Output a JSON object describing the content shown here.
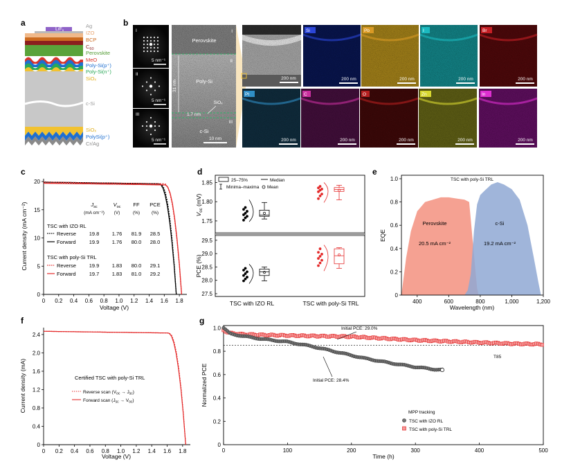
{
  "panel_labels": [
    "a",
    "b",
    "c",
    "d",
    "e",
    "f",
    "g"
  ],
  "panel_a": {
    "layers": [
      {
        "name": "LiF",
        "sub": "x",
        "color": "#8f63c8"
      },
      {
        "name": "Ag",
        "color": "#9a9a9a"
      },
      {
        "name": "IZO",
        "color": "#f0b98a"
      },
      {
        "name": "BCP",
        "color": "#cc6b1f"
      },
      {
        "name": "C",
        "sub": "60",
        "color": "#8b1e1e"
      },
      {
        "name": "Perovskite",
        "color": "#5aa33a"
      },
      {
        "name": "MeO",
        "color": "#d9342b"
      },
      {
        "name": "Poly-Si(p⁺)",
        "color": "#1f6fd0"
      },
      {
        "name": "Poly-Si(n⁺)",
        "color": "#2aa858"
      },
      {
        "name": "SiOₓ",
        "color": "#f2c230"
      },
      {
        "name": "c-Si",
        "color": "#9a9a9a"
      },
      {
        "name": "SiOₓ",
        "color": "#f2c230"
      },
      {
        "name": "PolySi(p⁺)",
        "color": "#1f6fd0"
      },
      {
        "name": "Cr/Ag",
        "color": "#8a8a8a"
      }
    ]
  },
  "panel_b": {
    "fft_labels": [
      "I",
      "II",
      "III"
    ],
    "fft_scale": "5 nm⁻¹",
    "tem_labels": {
      "perovskite": "Perovskite",
      "polysi": "Poly-Si",
      "sio": "SiOₓ",
      "csi": "c-Si",
      "thick": "31 nm",
      "thin": "1.7 nm",
      "scale": "10 nm",
      "r1": "I",
      "r2": "II",
      "r3": "III"
    },
    "eds_row1": [
      {
        "el": "Si",
        "bg": "#08144a",
        "fg": "#2c46d8"
      },
      {
        "el": "Pb",
        "bg": "#9a7a18",
        "fg": "#d99a25"
      },
      {
        "el": "I",
        "bg": "#127d80",
        "fg": "#1bbac0"
      },
      {
        "el": "Br",
        "bg": "#4a080a",
        "fg": "#c61f25"
      }
    ],
    "eds_row2": [
      {
        "el": "Pt",
        "bg": "#0f2a3a",
        "fg": "#2f8ec5"
      },
      {
        "el": "C",
        "bg": "#3f0e38",
        "fg": "#c82f9e"
      },
      {
        "el": "O",
        "bg": "#3a0808",
        "fg": "#b52020"
      },
      {
        "el": "Zn",
        "bg": "#5a5a14",
        "fg": "#d7d730"
      },
      {
        "el": "In",
        "bg": "#5a0e5a",
        "fg": "#de2fd0"
      }
    ],
    "eds_scale": "200 nm"
  },
  "panel_c": {
    "xlabel": "Voltage (V)",
    "ylabel": "Current density (mA cm⁻²)",
    "xticks": [
      "0",
      "0.2",
      "0.4",
      "0.6",
      "0.8",
      "1.0",
      "1.2",
      "1.4",
      "1.6",
      "1.8"
    ],
    "yticks": [
      "0",
      "5",
      "10",
      "15",
      "20"
    ],
    "table_head": {
      "jsc": "J",
      "jsc_sub": "sc",
      "voc": "V",
      "voc_sub": "oc",
      "ff": "FF",
      "pce": "PCE",
      "u_jsc": "(mA cm⁻²)",
      "u_voc": "(V)",
      "u_ff": "(%)",
      "u_pce": "(%)"
    },
    "group1": "TSC with IZO RL",
    "group2": "TSC with poly-Si TRL",
    "rows": [
      {
        "label": "Reverse",
        "jsc": "19.8",
        "voc": "1.76",
        "ff": "81.9",
        "pce": "28.5"
      },
      {
        "label": "Forward",
        "jsc": "19.9",
        "voc": "1.76",
        "ff": "80.0",
        "pce": "28.0"
      },
      {
        "label": "Reverse",
        "jsc": "19.9",
        "voc": "1.83",
        "ff": "80.0",
        "pce": "29.1"
      },
      {
        "label": "Forward",
        "jsc": "19.7",
        "voc": "1.83",
        "ff": "81.0",
        "pce": "29.2"
      }
    ]
  },
  "panel_d": {
    "legend": {
      "box": "25–75%",
      "median": "Median",
      "range": "Minima–maxima",
      "mean": "Mean"
    },
    "xcats": [
      "TSC with IZO RL",
      "TSC with poly-Si TRL"
    ],
    "top_ylabel": "V",
    "top_ylabel_sub": "oc",
    "top_ylabel_unit": " (mV)",
    "top_yticks": [
      "1.75",
      "1.80",
      "1.85"
    ],
    "bottom_ylabel": "PCE (%)",
    "bottom_yticks": [
      "27.5",
      "28.0",
      "28.5",
      "29.0",
      "29.5"
    ]
  },
  "panel_e": {
    "title": "TSC with poly-Si TRL",
    "xlabel": "Wavelength (nm)",
    "ylabel": "EQE",
    "xticks": [
      "400",
      "600",
      "800",
      "1,000",
      "1,200"
    ],
    "yticks": [
      "0",
      "0.2",
      "0.4",
      "0.6",
      "0.8",
      "1.0"
    ],
    "pero": "Perovskite",
    "pero_j": "20.5 mA cm⁻²",
    "csi": "c-Si",
    "csi_j": "19.2 mA cm⁻²"
  },
  "panel_f": {
    "xlabel": "Voltage (V)",
    "ylabel": "Current density (mA)",
    "xticks": [
      "0",
      "0.2",
      "0.4",
      "0.6",
      "0.8",
      "1.0",
      "1.2",
      "1.4",
      "1.6",
      "1.8"
    ],
    "yticks": [
      "0",
      "0.4",
      "0.8",
      "1.2",
      "1.6",
      "2.0",
      "2.4"
    ],
    "caption": "Certified TSC with poly-Si TRL",
    "rev": "Reverse scan (V",
    "rev_a": "oc",
    "rev_b": " → J",
    "rev_c": "sc",
    "rev_d": ")",
    "fwd": "Forward scan (J",
    "fwd_a": "sc",
    "fwd_b": " → V",
    "fwd_c": "oc",
    "fwd_d": ")"
  },
  "panel_g": {
    "xlabel": "Time (h)",
    "ylabel": "Normalized PCE",
    "xticks": [
      "0",
      "100",
      "200",
      "300",
      "400",
      "500"
    ],
    "yticks": [
      "0",
      "0.2",
      "0.4",
      "0.6",
      "0.8",
      "1.0"
    ],
    "t85": "T85",
    "init_red": "Initial PCE: 29.0%",
    "init_black": "Initial PCE: 28.4%",
    "legend_title": "MPP tracking",
    "legend_a": "TSC with IZO RL",
    "legend_b": "TSC with poly-Si TRL"
  },
  "chart_data": [
    {
      "panel": "c",
      "type": "line",
      "xlabel": "Voltage (V)",
      "ylabel": "Current density (mA cm⁻²)",
      "xlim": [
        0,
        1.9
      ],
      "ylim": [
        0,
        20.5
      ],
      "series": [
        {
          "name": "IZO RL Reverse",
          "color": "#000000",
          "dash": true,
          "jsc": 19.8,
          "voc": 1.76,
          "knee": 1.55
        },
        {
          "name": "IZO RL Forward",
          "color": "#000000",
          "dash": false,
          "jsc": 19.9,
          "voc": 1.76,
          "knee": 1.53
        },
        {
          "name": "poly-Si TRL Reverse",
          "color": "#e42a2a",
          "dash": true,
          "jsc": 19.9,
          "voc": 1.83,
          "knee": 1.6
        },
        {
          "name": "poly-Si TRL Forward",
          "color": "#e42a2a",
          "dash": false,
          "jsc": 19.7,
          "voc": 1.83,
          "knee": 1.61
        }
      ]
    },
    {
      "panel": "d-top",
      "type": "box",
      "ylim": [
        1.73,
        1.86
      ],
      "categories": [
        "TSC with IZO RL",
        "TSC with poly-Si TRL"
      ],
      "boxes": [
        {
          "min": 1.755,
          "q1": 1.762,
          "median": 1.765,
          "q3": 1.778,
          "max": 1.798,
          "mean": 1.77,
          "color": "#000000",
          "points": [
            1.752,
            1.758,
            1.762,
            1.766,
            1.77,
            1.775,
            1.78,
            1.785
          ]
        },
        {
          "min": 1.805,
          "q1": 1.827,
          "median": 1.832,
          "q3": 1.837,
          "max": 1.843,
          "mean": 1.83,
          "color": "#e42a2a",
          "points": [
            1.808,
            1.815,
            1.82,
            1.826,
            1.83,
            1.833,
            1.836,
            1.84
          ]
        }
      ]
    },
    {
      "panel": "d-bottom",
      "type": "box",
      "ylim": [
        27.5,
        29.6
      ],
      "categories": [
        "TSC with IZO RL",
        "TSC with poly-Si TRL"
      ],
      "boxes": [
        {
          "min": 27.98,
          "q1": 28.18,
          "median": 28.32,
          "q3": 28.42,
          "max": 28.5,
          "mean": 28.3,
          "color": "#000000",
          "points": [
            27.98,
            28.05,
            28.12,
            28.18,
            28.25,
            28.32,
            28.38,
            28.45
          ]
        },
        {
          "min": 28.45,
          "q1": 28.62,
          "median": 28.92,
          "q3": 29.18,
          "max": 29.22,
          "mean": 28.95,
          "color": "#e42a2a",
          "points": [
            28.55,
            28.65,
            28.75,
            28.82,
            28.9,
            28.98,
            29.05,
            29.18
          ]
        }
      ]
    },
    {
      "panel": "e",
      "type": "area",
      "xlabel": "Wavelength (nm)",
      "ylabel": "EQE",
      "xlim": [
        300,
        1200
      ],
      "ylim": [
        0,
        1.0
      ],
      "series": [
        {
          "name": "Perovskite",
          "color": "#f3917f",
          "x": [
            300,
            330,
            360,
            400,
            450,
            500,
            550,
            600,
            650,
            700,
            730,
            760,
            780,
            790
          ],
          "y": [
            0.0,
            0.32,
            0.55,
            0.72,
            0.8,
            0.82,
            0.84,
            0.84,
            0.83,
            0.82,
            0.8,
            0.35,
            0.06,
            0.0
          ]
        },
        {
          "name": "c-Si",
          "color": "#8fa8d3",
          "x": [
            700,
            720,
            740,
            760,
            780,
            800,
            830,
            870,
            910,
            950,
            1000,
            1050,
            1100,
            1140,
            1170,
            1185
          ],
          "y": [
            0.0,
            0.04,
            0.18,
            0.55,
            0.78,
            0.86,
            0.9,
            0.95,
            0.97,
            0.95,
            0.91,
            0.82,
            0.6,
            0.32,
            0.1,
            0.0
          ]
        }
      ]
    },
    {
      "panel": "f",
      "type": "line",
      "xlabel": "Voltage (V)",
      "ylabel": "Current density (mA)",
      "xlim": [
        0,
        1.9
      ],
      "ylim": [
        0,
        2.55
      ],
      "series": [
        {
          "name": "Reverse scan",
          "color": "#e42a2a",
          "dash": true,
          "jsc": 2.47,
          "voc": 1.84,
          "knee": 1.62
        },
        {
          "name": "Forward scan",
          "color": "#e42a2a",
          "dash": false,
          "jsc": 2.47,
          "voc": 1.84,
          "knee": 1.61
        }
      ]
    },
    {
      "panel": "g",
      "type": "scatter",
      "xlabel": "Time (h)",
      "ylabel": "Normalized PCE",
      "xlim": [
        0,
        500
      ],
      "ylim": [
        0,
        1.02
      ],
      "t85": 0.85,
      "series": [
        {
          "name": "TSC with IZO RL",
          "color": "#4d4d4d",
          "x": [
            0,
            10,
            30,
            60,
            100,
            140,
            180,
            220,
            260,
            300,
            330,
            342
          ],
          "y": [
            1.0,
            0.95,
            0.93,
            0.905,
            0.88,
            0.84,
            0.79,
            0.74,
            0.7,
            0.665,
            0.645,
            0.64
          ]
        },
        {
          "name": "TSC with poly-Si TRL",
          "color": "#e42a2a",
          "x": [
            0,
            10,
            30,
            60,
            100,
            150,
            200,
            250,
            300,
            350,
            400,
            450,
            500
          ],
          "y": [
            0.98,
            0.955,
            0.945,
            0.94,
            0.935,
            0.93,
            0.925,
            0.91,
            0.895,
            0.885,
            0.875,
            0.865,
            0.86
          ]
        }
      ]
    }
  ]
}
